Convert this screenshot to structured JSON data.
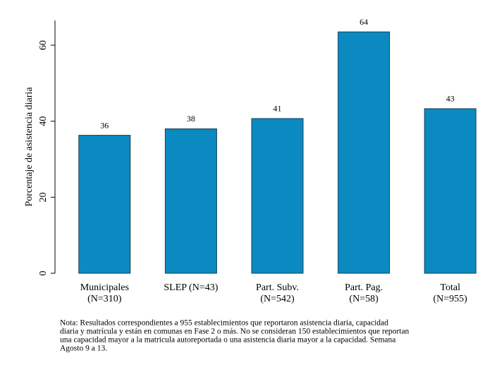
{
  "chart_data": {
    "type": "bar",
    "y_label": "Porcentaje de asistencia diaria",
    "categories": [
      [
        "Municipales",
        "(N=310)"
      ],
      [
        "SLEP (N=43)"
      ],
      [
        "Part. Subv.",
        "(N=542)"
      ],
      [
        "Part. Pag.",
        "(N=58)"
      ],
      [
        "Total",
        "(N=955)"
      ]
    ],
    "values": [
      36.3,
      38,
      40.7,
      63.5,
      43.3
    ],
    "value_labels": [
      "36",
      "38",
      "41",
      "64",
      "43"
    ],
    "color": "#0a8ac0",
    "ylim": [
      0,
      66.5
    ],
    "yticks": [
      0,
      20,
      40,
      60
    ],
    "grid": false,
    "note": [
      "Nota: Resultados correspondientes a 955 establecimientos que reportaron asistencia diaria, capacidad",
      "diaria y matrícula y están en comunas en Fase 2 o más. No se consideran 150 establecimientos que reportan",
      "una capacidad mayor a la matricula autoreportada o una asistencia diaria mayor a la capacidad. Semana",
      "Agosto 9 a 13."
    ]
  }
}
